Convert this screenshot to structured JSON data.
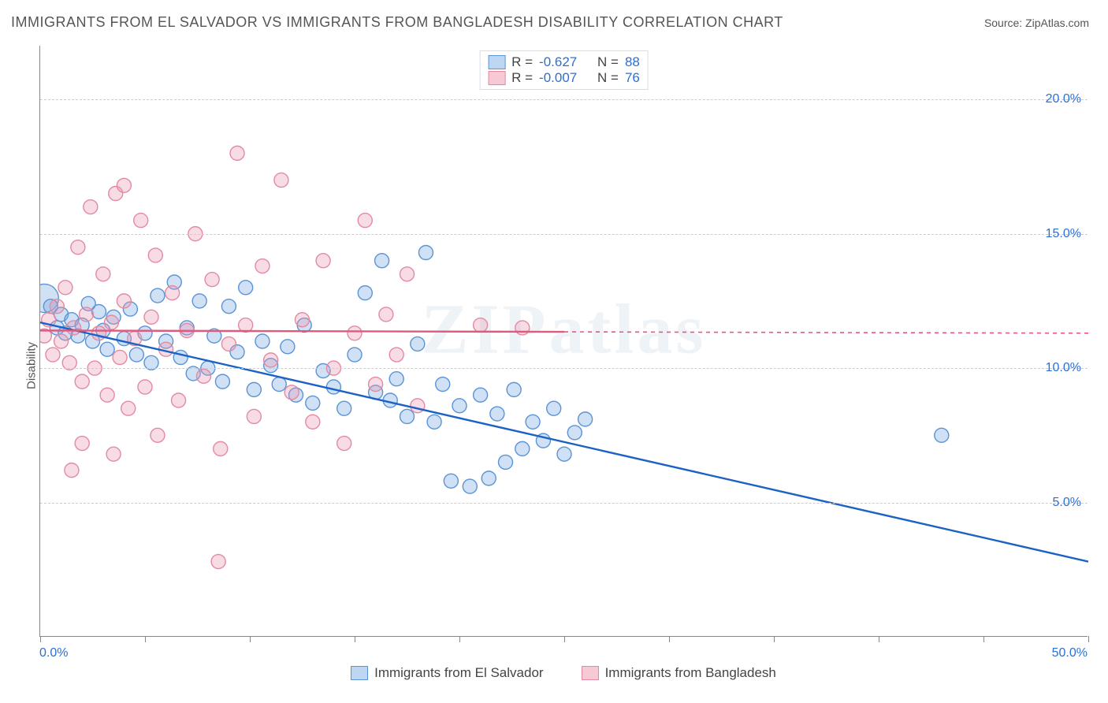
{
  "title": "IMMIGRANTS FROM EL SALVADOR VS IMMIGRANTS FROM BANGLADESH DISABILITY CORRELATION CHART",
  "source": "Source: ZipAtlas.com",
  "ylabel": "Disability",
  "watermark": "ZIPatlas",
  "chart": {
    "type": "scatter",
    "xlim": [
      0,
      50
    ],
    "ylim": [
      0,
      22
    ],
    "xticks": [
      0,
      5,
      10,
      15,
      20,
      25,
      30,
      35,
      40,
      45,
      50
    ],
    "yticks": [
      5,
      10,
      15,
      20
    ],
    "xtick_labels": {
      "min": "0.0%",
      "max": "50.0%"
    },
    "ytick_labels": [
      "5.0%",
      "10.0%",
      "15.0%",
      "20.0%"
    ],
    "grid_color": "#cccccc",
    "axis_color": "#888888",
    "background_color": "#ffffff",
    "label_color": "#2b6fd6",
    "text_color": "#555555",
    "marker_radius": 9,
    "marker_stroke_width": 1.4,
    "trend_width": 2.4,
    "trend_width_dash": "5,5"
  },
  "top_legend": [
    {
      "swatch_fill": "#bdd6f2",
      "swatch_stroke": "#5a94d6",
      "R_label": "R =",
      "R": "-0.627",
      "N_label": "N =",
      "N": "88"
    },
    {
      "swatch_fill": "#f7c9d4",
      "swatch_stroke": "#e38aa0",
      "R_label": "R =",
      "R": "-0.007",
      "N_label": "N =",
      "N": "76"
    }
  ],
  "bottom_legend": [
    {
      "label": "Immigrants from El Salvador",
      "fill": "#bdd6f2",
      "stroke": "#5a94d6"
    },
    {
      "label": "Immigrants from Bangladesh",
      "fill": "#f7c9d4",
      "stroke": "#e38aa0"
    }
  ],
  "series": [
    {
      "name": "El Salvador",
      "fill": "rgba(120,170,225,0.35)",
      "stroke": "#5a94d6",
      "trend_color": "#1b62c4",
      "trend": {
        "x1": 0,
        "y1": 11.7,
        "x2": 50,
        "y2": 2.8,
        "dash_after_x": 50
      },
      "points": [
        [
          0.2,
          12.6,
          18
        ],
        [
          0.5,
          12.3
        ],
        [
          0.8,
          11.5
        ],
        [
          1,
          12.0
        ],
        [
          1.2,
          11.3
        ],
        [
          1.5,
          11.8
        ],
        [
          1.8,
          11.2
        ],
        [
          2,
          11.6
        ],
        [
          2.3,
          12.4
        ],
        [
          2.5,
          11.0
        ],
        [
          2.8,
          12.1
        ],
        [
          3,
          11.4
        ],
        [
          3.2,
          10.7
        ],
        [
          3.5,
          11.9
        ],
        [
          4,
          11.1
        ],
        [
          4.3,
          12.2
        ],
        [
          4.6,
          10.5
        ],
        [
          5,
          11.3
        ],
        [
          5.3,
          10.2
        ],
        [
          5.6,
          12.7
        ],
        [
          6,
          11.0
        ],
        [
          6.4,
          13.2
        ],
        [
          6.7,
          10.4
        ],
        [
          7,
          11.5
        ],
        [
          7.3,
          9.8
        ],
        [
          7.6,
          12.5
        ],
        [
          8,
          10.0
        ],
        [
          8.3,
          11.2
        ],
        [
          8.7,
          9.5
        ],
        [
          9,
          12.3
        ],
        [
          9.4,
          10.6
        ],
        [
          9.8,
          13.0
        ],
        [
          10.2,
          9.2
        ],
        [
          10.6,
          11.0
        ],
        [
          11,
          10.1
        ],
        [
          11.4,
          9.4
        ],
        [
          11.8,
          10.8
        ],
        [
          12.2,
          9.0
        ],
        [
          12.6,
          11.6
        ],
        [
          13,
          8.7
        ],
        [
          13.5,
          9.9
        ],
        [
          14,
          9.3
        ],
        [
          14.5,
          8.5
        ],
        [
          15,
          10.5
        ],
        [
          15.5,
          12.8
        ],
        [
          16,
          9.1
        ],
        [
          16.3,
          14.0
        ],
        [
          16.7,
          8.8
        ],
        [
          17,
          9.6
        ],
        [
          17.5,
          8.2
        ],
        [
          18,
          10.9
        ],
        [
          18.4,
          14.3
        ],
        [
          18.8,
          8.0
        ],
        [
          19.2,
          9.4
        ],
        [
          19.6,
          5.8
        ],
        [
          20,
          8.6
        ],
        [
          20.5,
          5.6
        ],
        [
          21,
          9.0
        ],
        [
          21.4,
          5.9
        ],
        [
          21.8,
          8.3
        ],
        [
          22.2,
          6.5
        ],
        [
          22.6,
          9.2
        ],
        [
          23,
          7.0
        ],
        [
          23.5,
          8.0
        ],
        [
          24,
          7.3
        ],
        [
          24.5,
          8.5
        ],
        [
          25,
          6.8
        ],
        [
          25.5,
          7.6
        ],
        [
          26,
          8.1
        ],
        [
          43,
          7.5
        ]
      ]
    },
    {
      "name": "Bangladesh",
      "fill": "rgba(235,150,175,0.33)",
      "stroke": "#e38aa0",
      "trend_color": "#e05a7e",
      "trend": {
        "x1": 0,
        "y1": 11.4,
        "x2": 25,
        "y2": 11.35,
        "dash_after_x": 25
      },
      "points": [
        [
          0.2,
          11.2
        ],
        [
          0.4,
          11.8
        ],
        [
          0.6,
          10.5
        ],
        [
          0.8,
          12.3
        ],
        [
          1,
          11.0
        ],
        [
          1.2,
          13.0
        ],
        [
          1.4,
          10.2
        ],
        [
          1.6,
          11.5
        ],
        [
          1.8,
          14.5
        ],
        [
          2,
          9.5
        ],
        [
          2.2,
          12.0
        ],
        [
          2.4,
          16.0
        ],
        [
          2.6,
          10.0
        ],
        [
          2.8,
          11.3
        ],
        [
          3,
          13.5
        ],
        [
          3.2,
          9.0
        ],
        [
          3.4,
          11.7
        ],
        [
          3.6,
          16.5
        ],
        [
          3.8,
          10.4
        ],
        [
          4,
          12.5
        ],
        [
          4.2,
          8.5
        ],
        [
          4.5,
          11.1
        ],
        [
          4.8,
          15.5
        ],
        [
          5,
          9.3
        ],
        [
          5.3,
          11.9
        ],
        [
          5.6,
          7.5
        ],
        [
          6,
          10.7
        ],
        [
          6.3,
          12.8
        ],
        [
          6.6,
          8.8
        ],
        [
          7,
          11.4
        ],
        [
          7.4,
          15.0
        ],
        [
          7.8,
          9.7
        ],
        [
          8.2,
          13.3
        ],
        [
          8.6,
          7.0
        ],
        [
          9,
          10.9
        ],
        [
          9.4,
          18.0
        ],
        [
          9.8,
          11.6
        ],
        [
          10.2,
          8.2
        ],
        [
          10.6,
          13.8
        ],
        [
          11,
          10.3
        ],
        [
          11.5,
          17.0
        ],
        [
          12,
          9.1
        ],
        [
          12.5,
          11.8
        ],
        [
          13,
          8.0
        ],
        [
          13.5,
          14.0
        ],
        [
          14,
          10.0
        ],
        [
          14.5,
          7.2
        ],
        [
          15,
          11.3
        ],
        [
          15.5,
          15.5
        ],
        [
          16,
          9.4
        ],
        [
          16.5,
          12.0
        ],
        [
          17,
          10.5
        ],
        [
          17.5,
          13.5
        ],
        [
          18,
          8.6
        ],
        [
          21,
          11.6
        ],
        [
          23,
          11.5
        ],
        [
          8.5,
          2.8
        ],
        [
          1.5,
          6.2
        ],
        [
          3.5,
          6.8
        ],
        [
          2.0,
          7.2
        ],
        [
          4.0,
          16.8
        ],
        [
          5.5,
          14.2
        ]
      ]
    }
  ]
}
